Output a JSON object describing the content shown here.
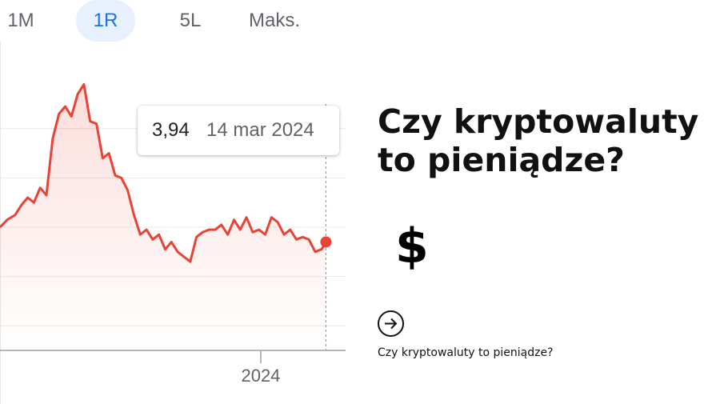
{
  "range_tabs": [
    {
      "label": "1M",
      "active": false
    },
    {
      "label": "1R",
      "active": true
    },
    {
      "label": "5L",
      "active": false
    },
    {
      "label": "Maks.",
      "active": false
    }
  ],
  "tooltip": {
    "value": "3,94",
    "date": "14 mar 2024"
  },
  "article": {
    "title": "Czy kryptowaluty to pieniądze?",
    "symbol": "$",
    "arrow_icon": "arrow-right-circle-icon",
    "link_text": "Czy kryptowaluty to pieniądze?"
  },
  "colors": {
    "line": "#ea4335",
    "active_tab_bg": "#e8f0fe",
    "active_tab_text": "#1a73e8",
    "grid": "#e8e8e8"
  },
  "chart_data": {
    "type": "area",
    "xlabel": "",
    "ylabel": "",
    "x_tick_labels": [
      "2024"
    ],
    "x_range": [
      "2023-03-15",
      "2024-04-05"
    ],
    "ylim": [
      3.5,
      4.5
    ],
    "y_gridlines": [
      3.6,
      3.8,
      4.0,
      4.2,
      4.4
    ],
    "grid": true,
    "legend": "none",
    "highlight": {
      "x": "2024-03-14",
      "y": 3.94
    },
    "series": [
      {
        "x": [
          "2023-03-15",
          "2023-03-23",
          "2023-04-01",
          "2023-04-08",
          "2023-04-15",
          "2023-04-22",
          "2023-04-29",
          "2023-05-06",
          "2023-05-13",
          "2023-05-20",
          "2023-05-27",
          "2023-06-03",
          "2023-06-10",
          "2023-06-17",
          "2023-06-24",
          "2023-07-01",
          "2023-07-08",
          "2023-07-15",
          "2023-07-22",
          "2023-07-29",
          "2023-08-05",
          "2023-08-12",
          "2023-08-19",
          "2023-08-26",
          "2023-09-02",
          "2023-09-09",
          "2023-09-16",
          "2023-09-23",
          "2023-09-30",
          "2023-10-07",
          "2023-10-14",
          "2023-10-21",
          "2023-10-28",
          "2023-11-04",
          "2023-11-11",
          "2023-11-18",
          "2023-11-25",
          "2023-12-02",
          "2023-12-09",
          "2023-12-16",
          "2023-12-23",
          "2023-12-30",
          "2024-01-06",
          "2024-01-13",
          "2024-01-20",
          "2024-01-27",
          "2024-02-03",
          "2024-02-10",
          "2024-02-17",
          "2024-02-24",
          "2024-03-02",
          "2024-03-09",
          "2024-03-14"
        ],
        "values": [
          4.0,
          4.03,
          4.05,
          4.09,
          4.12,
          4.1,
          4.16,
          4.13,
          4.36,
          4.46,
          4.49,
          4.45,
          4.54,
          4.58,
          4.43,
          4.42,
          4.28,
          4.3,
          4.21,
          4.2,
          4.15,
          4.05,
          3.97,
          3.99,
          3.95,
          3.97,
          3.91,
          3.94,
          3.9,
          3.88,
          3.86,
          3.96,
          3.98,
          3.99,
          3.99,
          4.01,
          3.97,
          4.03,
          3.99,
          4.04,
          3.98,
          3.99,
          3.97,
          4.04,
          4.02,
          3.97,
          3.99,
          3.95,
          3.96,
          3.95,
          3.9,
          3.91,
          3.94
        ]
      }
    ]
  }
}
